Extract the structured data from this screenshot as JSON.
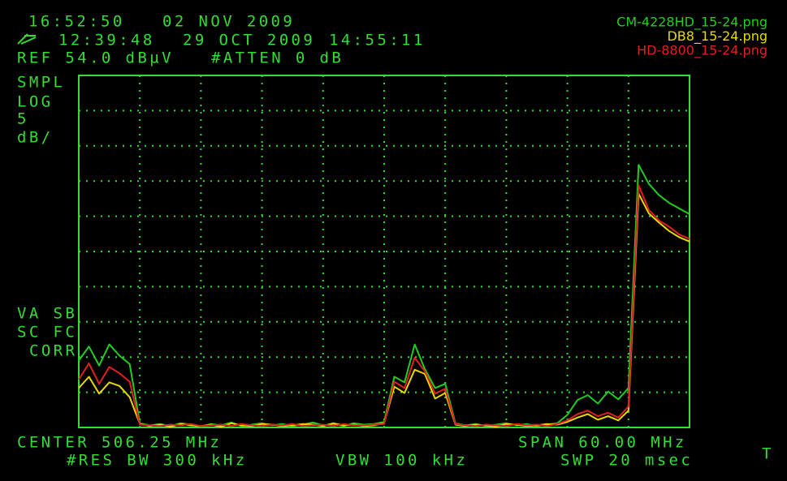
{
  "header": {
    "clock": "16:52:50",
    "date": "02 NOV 2009",
    "recall_time": "12:39:48",
    "recall_date": "29 OCT 2009",
    "recall_clock": "14:55:11",
    "ref_level": "REF 54.0 dBµV",
    "atten": "#ATTEN 0 dB"
  },
  "left_labels": {
    "detector": "SMPL",
    "scale_type": "LOG",
    "scale_unit": "dB/",
    "flags": [
      "VA SB",
      "SC FC",
      "CORR"
    ]
  },
  "footer": {
    "center": "CENTER 506.25 MHz",
    "span": "SPAN 60.00 MHz",
    "rbw": "#RES BW 300 kHz",
    "vbw": "VBW 100 kHz",
    "sweep": "SWP 20 msec",
    "trigger": "T"
  },
  "chart_data": {
    "type": "line",
    "xlim": [
      476.25,
      536.25
    ],
    "ylim": [
      4,
      54
    ],
    "y_per_div": 5,
    "grid": true,
    "x": [
      476.25,
      477.25,
      478.25,
      479.25,
      480.25,
      481.25,
      482.25,
      483.25,
      484.25,
      485.25,
      486.25,
      487.25,
      488.25,
      489.25,
      490.25,
      491.25,
      492.25,
      493.25,
      494.25,
      495.25,
      496.25,
      497.25,
      498.25,
      499.25,
      500.25,
      501.25,
      502.25,
      503.25,
      504.25,
      505.25,
      506.25,
      507.25,
      508.25,
      509.25,
      510.25,
      511.25,
      512.25,
      513.25,
      514.25,
      515.25,
      516.25,
      517.25,
      518.25,
      519.25,
      520.25,
      521.25,
      522.25,
      523.25,
      524.25,
      525.25,
      526.25,
      527.25,
      528.25,
      529.25,
      530.25,
      531.25,
      532.25,
      533.25,
      534.25,
      535.25,
      536.25
    ],
    "series": [
      {
        "name": "CM-4228HD_15-24.png",
        "color": "#22cc22",
        "values": [
          13.5,
          15.5,
          12.8,
          15.8,
          14.2,
          13.0,
          4.6,
          4.3,
          4.5,
          4.2,
          4.6,
          4.4,
          4.1,
          4.5,
          4.3,
          4.7,
          4.2,
          4.4,
          4.6,
          4.3,
          4.5,
          4.2,
          4.4,
          4.7,
          4.3,
          4.5,
          4.2,
          4.6,
          4.4,
          4.5,
          4.8,
          11.2,
          10.4,
          15.8,
          12.3,
          9.6,
          10.2,
          4.6,
          4.3,
          4.5,
          4.2,
          4.4,
          4.6,
          4.3,
          4.5,
          4.2,
          4.4,
          4.6,
          5.8,
          7.9,
          8.6,
          7.4,
          9.1,
          8.0,
          9.6,
          41.3,
          38.6,
          37.0,
          35.9,
          35.1,
          34.3
        ]
      },
      {
        "name": "DB8_15-24.png",
        "color": "#e8d800",
        "values": [
          9.6,
          11.2,
          8.8,
          10.4,
          9.9,
          8.3,
          4.5,
          4.2,
          4.4,
          4.1,
          4.5,
          4.3,
          4.2,
          4.4,
          4.1,
          4.6,
          4.3,
          4.2,
          4.5,
          4.4,
          4.2,
          4.3,
          4.5,
          4.4,
          4.2,
          4.6,
          4.3,
          4.4,
          4.2,
          4.3,
          4.6,
          9.8,
          8.9,
          12.2,
          11.6,
          8.1,
          8.9,
          4.4,
          4.2,
          4.4,
          4.3,
          4.1,
          4.5,
          4.4,
          4.2,
          4.3,
          4.5,
          4.4,
          4.8,
          5.4,
          5.9,
          5.1,
          5.6,
          5.0,
          6.4,
          37.2,
          34.4,
          33.1,
          31.9,
          31.0,
          30.4
        ]
      },
      {
        "name": "HD-8800_15-24.png",
        "color": "#e02020",
        "values": [
          10.8,
          13.1,
          10.2,
          12.6,
          11.7,
          10.5,
          4.4,
          4.3,
          4.2,
          4.4,
          4.3,
          4.5,
          4.2,
          4.3,
          4.4,
          4.2,
          4.5,
          4.3,
          4.2,
          4.4,
          4.3,
          4.5,
          4.2,
          4.3,
          4.4,
          4.2,
          4.5,
          4.3,
          4.3,
          4.4,
          4.5,
          10.5,
          9.6,
          13.9,
          12.0,
          8.8,
          9.5,
          4.5,
          4.3,
          4.2,
          4.4,
          4.3,
          4.2,
          4.5,
          4.3,
          4.4,
          4.2,
          4.5,
          5.0,
          5.9,
          6.4,
          5.6,
          6.1,
          5.4,
          7.0,
          38.4,
          34.9,
          33.4,
          32.5,
          31.4,
          30.8
        ]
      }
    ]
  }
}
